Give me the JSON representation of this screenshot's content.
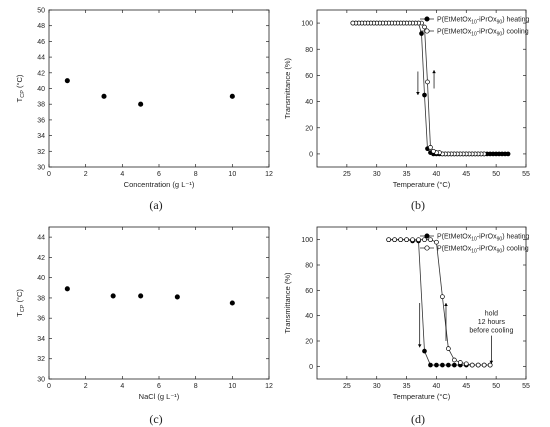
{
  "chart_data": [
    {
      "type": "scatter",
      "panel_label": "(a)",
      "xlabel": "Concentration (g L⁻¹)",
      "ylabel": "T_CP (°C)",
      "xlim": [
        0,
        12
      ],
      "ylim": [
        30,
        50
      ],
      "xticks": [
        0,
        2,
        4,
        6,
        8,
        10,
        12
      ],
      "yticks": [
        30,
        32,
        34,
        36,
        38,
        40,
        42,
        44,
        46,
        48,
        50
      ],
      "grid": false,
      "series": [
        {
          "marker": "filled",
          "x": [
            1,
            3,
            5,
            10
          ],
          "y": [
            41,
            39,
            38,
            39
          ]
        }
      ]
    },
    {
      "type": "line",
      "panel_label": "(b)",
      "xlabel": "Temperature (°C)",
      "ylabel": "Transmittance (%)",
      "xlim": [
        20,
        55
      ],
      "ylim": [
        -10,
        110
      ],
      "xticks": [
        25,
        30,
        35,
        40,
        45,
        50,
        55
      ],
      "yticks": [
        0,
        20,
        40,
        60,
        80,
        100
      ],
      "grid": false,
      "legend": "top-right",
      "series": [
        {
          "name": "P(EtMetOx10-iPrOx90) heating",
          "marker": "filled",
          "x": [
            26,
            26.5,
            27,
            27.5,
            28,
            28.5,
            29,
            29.5,
            30,
            30.5,
            31,
            31.5,
            32,
            32.5,
            33,
            33.5,
            34,
            34.5,
            35,
            35.5,
            36,
            36.5,
            37,
            37.5,
            38,
            38.5,
            39,
            39.5,
            40,
            40.5,
            41,
            41.5,
            42,
            42.5,
            43,
            43.5,
            44,
            44.5,
            45,
            45.5,
            46,
            46.5,
            47,
            47.5,
            48,
            48.5,
            49,
            49.5,
            50,
            50.5,
            51,
            51.5,
            52
          ],
          "y": [
            100,
            100,
            100,
            100,
            100,
            100,
            100,
            100,
            100,
            100,
            100,
            100,
            100,
            100,
            100,
            100,
            100,
            100,
            100,
            100,
            100,
            100,
            100,
            92,
            45,
            4,
            1,
            0,
            0,
            0,
            0,
            0,
            0,
            0,
            0,
            0,
            0,
            0,
            0,
            0,
            0,
            0,
            0,
            0,
            0,
            0,
            0,
            0,
            0,
            0,
            0,
            0,
            0
          ]
        },
        {
          "name": "P(EtMetOx10-iPrOx90) cooling",
          "marker": "open",
          "x": [
            48,
            47.5,
            47,
            46.5,
            46,
            45.5,
            45,
            44.5,
            44,
            43.5,
            43,
            42.5,
            42,
            41.5,
            41,
            40.5,
            40,
            39.5,
            39,
            38.5,
            38,
            37.5,
            37,
            36.5,
            36,
            35.5,
            35,
            34.5,
            34,
            33.5,
            33,
            32.5,
            32,
            31.5,
            31,
            30.5,
            30,
            29.5,
            29,
            28.5,
            28,
            27.5,
            27,
            26.5,
            26
          ],
          "y": [
            0,
            0,
            0,
            0,
            0,
            0,
            0,
            0,
            0,
            0,
            0,
            0,
            0,
            0,
            0,
            1,
            1,
            2,
            5,
            55,
            97,
            100,
            100,
            100,
            100,
            100,
            100,
            100,
            100,
            100,
            100,
            100,
            100,
            100,
            100,
            100,
            100,
            100,
            100,
            100,
            100,
            100,
            100,
            100,
            100
          ]
        }
      ],
      "legend_entries": [
        {
          "prefix": "P(EtMetOx",
          "sub": "10",
          "mid": "-iPrOx",
          "sub2": "90",
          "suffix": ") heating"
        },
        {
          "prefix": "P(EtMetOx",
          "sub": "10",
          "mid": "-iPrOx",
          "sub2": "90",
          "suffix": ") cooling"
        }
      ]
    },
    {
      "type": "scatter",
      "panel_label": "(c)",
      "xlabel": "NaCl (g L⁻¹)",
      "ylabel": "T_CP (°C)",
      "xlim": [
        0,
        12
      ],
      "ylim": [
        30,
        45
      ],
      "xticks": [
        0,
        2,
        4,
        6,
        8,
        10,
        12
      ],
      "yticks": [
        30,
        32,
        34,
        36,
        38,
        40,
        42,
        44
      ],
      "grid": false,
      "series": [
        {
          "marker": "filled",
          "x": [
            1,
            3.5,
            5,
            7,
            10
          ],
          "y": [
            38.9,
            38.2,
            38.2,
            38.1,
            37.5
          ]
        }
      ]
    },
    {
      "type": "line",
      "panel_label": "(d)",
      "xlabel": "Temperature (°C)",
      "ylabel": "Transmittance (%)",
      "xlim": [
        20,
        55
      ],
      "ylim": [
        -10,
        110
      ],
      "xticks": [
        25,
        30,
        35,
        40,
        45,
        50,
        55
      ],
      "yticks": [
        0,
        20,
        40,
        60,
        80,
        100
      ],
      "grid": false,
      "legend": "top-right",
      "annotation": {
        "lines": [
          "hold",
          "12 hours",
          "before cooling"
        ]
      },
      "series": [
        {
          "name": "P(EtMetOx10-iPrOx90) heating",
          "marker": "filled",
          "x": [
            32,
            33,
            34,
            35,
            36,
            37,
            38,
            39,
            40,
            41,
            42,
            43,
            44,
            45,
            46,
            47,
            48,
            49
          ],
          "y": [
            100,
            100,
            100,
            100,
            99,
            99,
            12,
            1,
            1,
            1,
            1,
            1,
            1,
            1,
            1,
            1,
            1,
            1
          ]
        },
        {
          "name": "P(EtMetOx10-iPrOx90) cooling",
          "marker": "open",
          "x": [
            49,
            48,
            47,
            46,
            45,
            44,
            43,
            42,
            41,
            40,
            39,
            38,
            37,
            36,
            35,
            34,
            33,
            32
          ],
          "y": [
            1,
            1,
            1,
            1,
            2,
            3,
            5,
            14,
            55,
            98,
            100,
            100,
            100,
            100,
            100,
            100,
            100,
            100
          ]
        }
      ],
      "legend_entries": [
        {
          "prefix": "P(EtMetOx",
          "sub": "10",
          "mid": "-iPrOx",
          "sub2": "90",
          "suffix": ") heating"
        },
        {
          "prefix": "P(EtMetOx",
          "sub": "10",
          "mid": "-iPrOx",
          "sub2": "90",
          "suffix": ") cooling"
        }
      ]
    }
  ]
}
